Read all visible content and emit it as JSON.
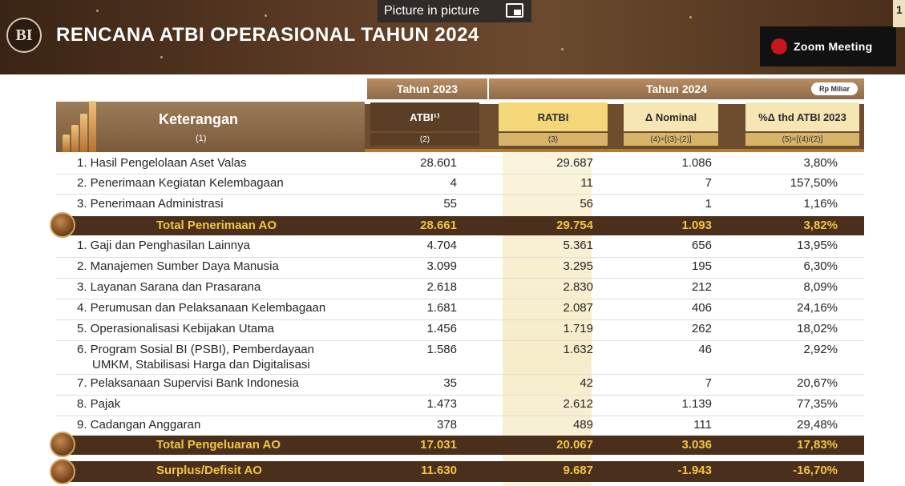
{
  "header": {
    "logo_text": "BI",
    "title": "RENCANA ATBI OPERASIONAL TAHUN 2024",
    "page_number": "1"
  },
  "overlay": {
    "pip_label": "Picture in picture",
    "zoom_label": "Zoom Meeting"
  },
  "table": {
    "year_2023": "Tahun 2023",
    "year_2024": "Tahun 2024",
    "unit": "Rp Miliar",
    "columns": [
      {
        "label": "Keterangan",
        "num": "(1)"
      },
      {
        "label": "ATBI¹⁾",
        "num": "(2)"
      },
      {
        "label": "RATBI",
        "num": "(3)"
      },
      {
        "label": "Δ Nominal",
        "num": "(4)=[(3)-(2)]"
      },
      {
        "label": "%Δ thd ATBI 2023",
        "num": "(5)=[(4)/(2)]"
      }
    ],
    "rows": [
      {
        "label": "1. Hasil Pengelolaan Aset Valas",
        "atbi": "28.601",
        "ratbi": "29.687",
        "nominal": "1.086",
        "pct": "3,80%"
      },
      {
        "label": "2. Penerimaan Kegiatan Kelembagaan",
        "atbi": "4",
        "ratbi": "11",
        "nominal": "7",
        "pct": "157,50%"
      },
      {
        "label": "3. Penerimaan Administrasi",
        "atbi": "55",
        "ratbi": "56",
        "nominal": "1",
        "pct": "1,16%"
      },
      {
        "label": "Total Penerimaan AO",
        "atbi": "28.661",
        "ratbi": "29.754",
        "nominal": "1.093",
        "pct": "3,82%"
      },
      {
        "label": "1. Gaji dan Penghasilan Lainnya",
        "atbi": "4.704",
        "ratbi": "5.361",
        "nominal": "656",
        "pct": "13,95%"
      },
      {
        "label": "2. Manajemen Sumber Daya Manusia",
        "atbi": "3.099",
        "ratbi": "3.295",
        "nominal": "195",
        "pct": "6,30%"
      },
      {
        "label": "3. Layanan Sarana dan Prasarana",
        "atbi": "2.618",
        "ratbi": "2.830",
        "nominal": "212",
        "pct": "8,09%"
      },
      {
        "label": "4. Perumusan dan Pelaksanaan Kelembagaan",
        "atbi": "1.681",
        "ratbi": "2.087",
        "nominal": "406",
        "pct": "24,16%"
      },
      {
        "label": "5. Operasionalisasi Kebijakan Utama",
        "atbi": "1.456",
        "ratbi": "1.719",
        "nominal": "262",
        "pct": "18,02%"
      },
      {
        "label": "6. Program Sosial BI (PSBI), Pemberdayaan",
        "label2": "UMKM, Stabilisasi Harga dan Digitalisasi",
        "atbi": "1.586",
        "ratbi": "1.632",
        "nominal": "46",
        "pct": "2,92%"
      },
      {
        "label": "7. Pelaksanaan Supervisi Bank Indonesia",
        "atbi": "35",
        "ratbi": "42",
        "nominal": "7",
        "pct": "20,67%"
      },
      {
        "label": "8. Pajak",
        "atbi": "1.473",
        "ratbi": "2.612",
        "nominal": "1.139",
        "pct": "77,35%"
      },
      {
        "label": "9. Cadangan Anggaran",
        "atbi": "378",
        "ratbi": "489",
        "nominal": "111",
        "pct": "29,48%"
      },
      {
        "label": "Total Pengeluaran AO",
        "atbi": "17.031",
        "ratbi": "20.067",
        "nominal": "3.036",
        "pct": "17,83%"
      },
      {
        "label": "Surplus/Defisit AO",
        "atbi": "11.630",
        "ratbi": "9.687",
        "nominal": "-1.943",
        "pct": "-16,70%"
      }
    ]
  },
  "colors": {
    "header_brown": "#4a2f1c",
    "total_text": "#f3c542",
    "ratbi_highlight": "#f6ecc9"
  }
}
